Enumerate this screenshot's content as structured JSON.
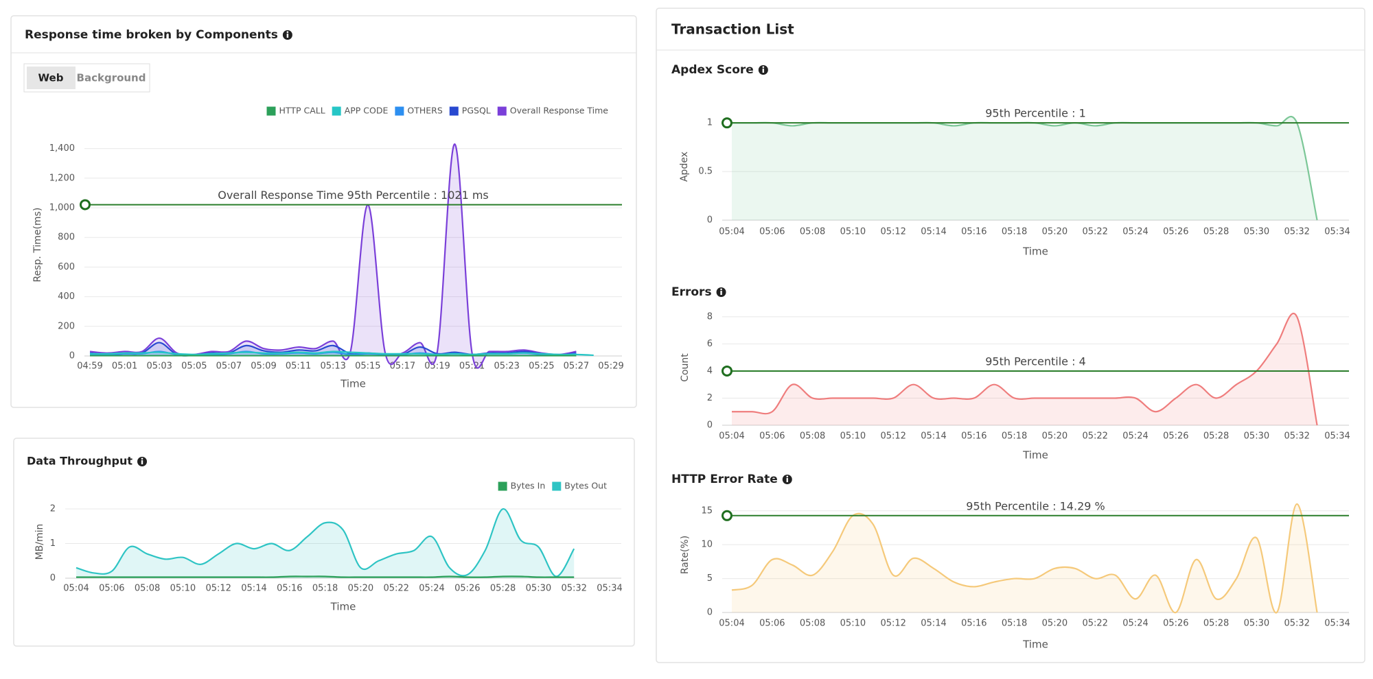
{
  "tabs": [
    "Web",
    "Background"
  ],
  "panel_title": "Transaction List",
  "chart_data": [
    {
      "type": "line",
      "title": "Response time broken by Components",
      "xlabel": "Time",
      "ylabel": "Resp. Time(ms)",
      "legend": "top-right",
      "categories": [
        "04:59",
        null,
        "05:01",
        null,
        "05:03",
        null,
        "05:05",
        null,
        "05:07",
        null,
        "05:09",
        null,
        "05:11",
        null,
        "05:13",
        null,
        "05:15",
        null,
        "05:17",
        null,
        "05:19",
        null,
        "05:21",
        null,
        "05:23",
        null,
        "05:25",
        null,
        "05:27",
        null,
        "05:29"
      ],
      "ylim": [
        0,
        1500
      ],
      "yticks": [
        0,
        200,
        400,
        600,
        800,
        {
          "value": 1000,
          "label": "1,000"
        },
        {
          "value": 1200,
          "label": "1,200"
        },
        {
          "value": 1400,
          "label": "1,400"
        }
      ],
      "grid": true,
      "percentile_line": {
        "value": 1021,
        "label": "Overall Response Time 95th Percentile : 1021 ms"
      },
      "series": [
        {
          "name": "HTTP CALL",
          "color": "#2ca05a",
          "values": [
            2,
            2,
            2,
            2,
            2,
            2,
            2,
            2,
            2,
            2,
            2,
            2,
            2,
            2,
            2,
            2,
            2,
            2,
            2,
            2,
            2,
            2,
            2,
            2,
            2,
            2,
            2,
            2,
            2,
            null,
            null
          ]
        },
        {
          "name": "APP CODE",
          "color": "#26c6c6",
          "values": [
            15,
            15,
            20,
            20,
            25,
            15,
            10,
            15,
            20,
            25,
            20,
            20,
            25,
            20,
            30,
            25,
            20,
            15,
            15,
            15,
            10,
            15,
            10,
            15,
            15,
            20,
            15,
            10,
            10,
            5,
            null
          ]
        },
        {
          "name": "OTHERS",
          "color": "#2d8ff0",
          "values": [
            10,
            10,
            15,
            15,
            30,
            10,
            5,
            10,
            15,
            30,
            15,
            15,
            20,
            15,
            25,
            10,
            15,
            10,
            10,
            20,
            10,
            15,
            10,
            15,
            15,
            20,
            10,
            5,
            15,
            null,
            null
          ]
        },
        {
          "name": "PGSQL",
          "color": "#2849d0",
          "values": [
            20,
            10,
            15,
            20,
            90,
            10,
            5,
            20,
            20,
            70,
            35,
            25,
            40,
            35,
            70,
            15,
            20,
            10,
            10,
            60,
            15,
            25,
            10,
            20,
            20,
            30,
            15,
            5,
            20,
            null,
            null
          ]
        },
        {
          "name": "Overall Response Time",
          "color": "#7a3fd9",
          "values": [
            30,
            20,
            30,
            30,
            120,
            20,
            10,
            30,
            30,
            100,
            50,
            40,
            60,
            50,
            100,
            30,
            1021,
            20,
            20,
            90,
            30,
            1430,
            20,
            30,
            30,
            40,
            20,
            10,
            30,
            null,
            null
          ]
        }
      ]
    },
    {
      "type": "line",
      "title": "Data Throughput",
      "xlabel": "Time",
      "ylabel": "MB/min",
      "legend": "top-right",
      "categories": [
        "05:04",
        null,
        "05:06",
        null,
        "05:08",
        null,
        "05:10",
        null,
        "05:12",
        null,
        "05:14",
        null,
        "05:16",
        null,
        "05:18",
        null,
        "05:20",
        null,
        "05:22",
        null,
        "05:24",
        null,
        "05:26",
        null,
        "05:28",
        null,
        "05:30",
        null,
        "05:32",
        null,
        "05:34"
      ],
      "ylim": [
        0,
        2.1
      ],
      "yticks": [
        0,
        1,
        2
      ],
      "grid": true,
      "series": [
        {
          "name": "Bytes In",
          "color": "#2ca05a",
          "values": [
            0.03,
            0.03,
            0.03,
            0.03,
            0.03,
            0.03,
            0.03,
            0.03,
            0.03,
            0.03,
            0.03,
            0.03,
            0.05,
            0.05,
            0.05,
            0.03,
            0.03,
            0.03,
            0.03,
            0.03,
            0.03,
            0.05,
            0.03,
            0.03,
            0.05,
            0.05,
            0.03,
            0.03,
            0.03,
            null,
            null
          ]
        },
        {
          "name": "Bytes Out",
          "color": "#2ec4c4",
          "values": [
            0.3,
            0.15,
            0.2,
            0.9,
            0.7,
            0.55,
            0.6,
            0.4,
            0.7,
            1,
            0.85,
            1,
            0.8,
            1.2,
            1.6,
            1.4,
            0.3,
            0.5,
            0.7,
            0.8,
            1.2,
            0.3,
            0.1,
            0.8,
            2,
            1.1,
            0.9,
            0.05,
            0.85,
            null,
            null
          ]
        }
      ]
    },
    {
      "type": "line",
      "title": "Apdex Score",
      "xlabel": "Time",
      "ylabel": "Apdex",
      "categories": [
        "05:04",
        null,
        "05:06",
        null,
        "05:08",
        null,
        "05:10",
        null,
        "05:12",
        null,
        "05:14",
        null,
        "05:16",
        null,
        "05:18",
        null,
        "05:20",
        null,
        "05:22",
        null,
        "05:24",
        null,
        "05:26",
        null,
        "05:28",
        null,
        "05:30",
        null,
        "05:32",
        null,
        "05:34"
      ],
      "ylim": [
        0,
        1.1
      ],
      "yticks": [
        0,
        0.5,
        1
      ],
      "grid": true,
      "percentile_line": {
        "value": 1,
        "label": "95th Percentile : 1"
      },
      "series": [
        {
          "color": "#7cc797",
          "values": [
            1,
            1,
            1,
            0.97,
            1,
            1,
            1,
            1,
            1,
            1,
            1,
            0.97,
            1,
            1,
            1,
            1,
            0.97,
            1,
            0.97,
            1,
            1,
            1,
            1,
            1,
            1,
            1,
            1,
            0.97,
            1,
            0,
            null
          ]
        }
      ]
    },
    {
      "type": "line",
      "title": "Errors",
      "xlabel": "Time",
      "ylabel": "Count",
      "categories": [
        "05:04",
        null,
        "05:06",
        null,
        "05:08",
        null,
        "05:10",
        null,
        "05:12",
        null,
        "05:14",
        null,
        "05:16",
        null,
        "05:18",
        null,
        "05:20",
        null,
        "05:22",
        null,
        "05:24",
        null,
        "05:26",
        null,
        "05:28",
        null,
        "05:30",
        null,
        "05:32",
        null,
        "05:34"
      ],
      "ylim": [
        0,
        8.5
      ],
      "yticks": [
        0,
        2,
        4,
        6,
        8
      ],
      "grid": true,
      "percentile_line": {
        "value": 4,
        "label": "95th Percentile : 4"
      },
      "series": [
        {
          "color": "#ef7d7d",
          "values": [
            1,
            1,
            1,
            3,
            2,
            2,
            2,
            2,
            2,
            3,
            2,
            2,
            2,
            3,
            2,
            2,
            2,
            2,
            2,
            2,
            2,
            1,
            2,
            3,
            2,
            3,
            4,
            6,
            8,
            0,
            null
          ]
        }
      ]
    },
    {
      "type": "line",
      "title": "HTTP Error Rate",
      "xlabel": "Time",
      "ylabel": "Rate(%)",
      "categories": [
        "05:04",
        null,
        "05:06",
        null,
        "05:08",
        null,
        "05:10",
        null,
        "05:12",
        null,
        "05:14",
        null,
        "05:16",
        null,
        "05:18",
        null,
        "05:20",
        null,
        "05:22",
        null,
        "05:24",
        null,
        "05:26",
        null,
        "05:28",
        null,
        "05:30",
        null,
        "05:32",
        null,
        "05:34"
      ],
      "ylim": [
        0,
        17
      ],
      "yticks": [
        0,
        5,
        10,
        15
      ],
      "grid": true,
      "percentile_line": {
        "value": 14.29,
        "label": "95th Percentile : 14.29 %"
      },
      "series": [
        {
          "color": "#f5c97a",
          "values": [
            3.3,
            4,
            7.8,
            7,
            5.5,
            9,
            14.3,
            13,
            5.5,
            8,
            6.5,
            4.5,
            3.8,
            4.5,
            5,
            5,
            6.5,
            6.5,
            5,
            5.5,
            2,
            5.5,
            0,
            7.8,
            2,
            5,
            11,
            0,
            16,
            0,
            null
          ]
        }
      ]
    }
  ]
}
